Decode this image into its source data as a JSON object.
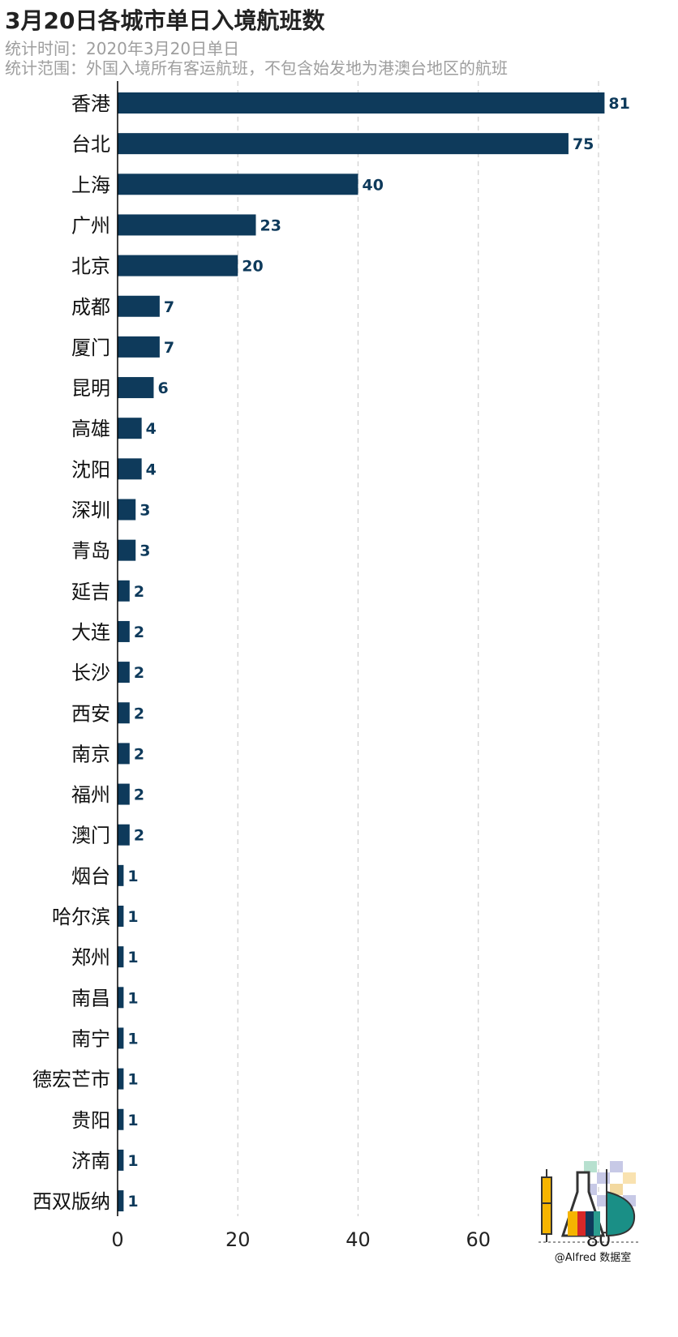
{
  "chart_data": {
    "type": "bar",
    "orientation": "horizontal",
    "title": "3月20日各城市单日入境航班数",
    "subtitle_lines": [
      "统计时间：2020年3月20日单日",
      "统计范围：外国入境所有客运航班，不包含始发地为港澳台地区的航班"
    ],
    "categories": [
      "香港",
      "台北",
      "上海",
      "广州",
      "北京",
      "成都",
      "厦门",
      "昆明",
      "高雄",
      "沈阳",
      "深圳",
      "青岛",
      "延吉",
      "大连",
      "长沙",
      "西安",
      "南京",
      "福州",
      "澳门",
      "烟台",
      "哈尔滨",
      "郑州",
      "南昌",
      "南宁",
      "德宏芒市",
      "贵阳",
      "济南",
      "西双版纳"
    ],
    "values": [
      81,
      75,
      40,
      23,
      20,
      7,
      7,
      6,
      4,
      4,
      3,
      3,
      2,
      2,
      2,
      2,
      2,
      2,
      2,
      1,
      1,
      1,
      1,
      1,
      1,
      1,
      1,
      1
    ],
    "xlim": [
      0,
      84
    ],
    "xticks": [
      0,
      20,
      40,
      60,
      80
    ],
    "grid": "vertical-dashed",
    "bar_color": "#0e3a5b"
  },
  "watermark": {
    "text": "@Alfred 数据室"
  }
}
